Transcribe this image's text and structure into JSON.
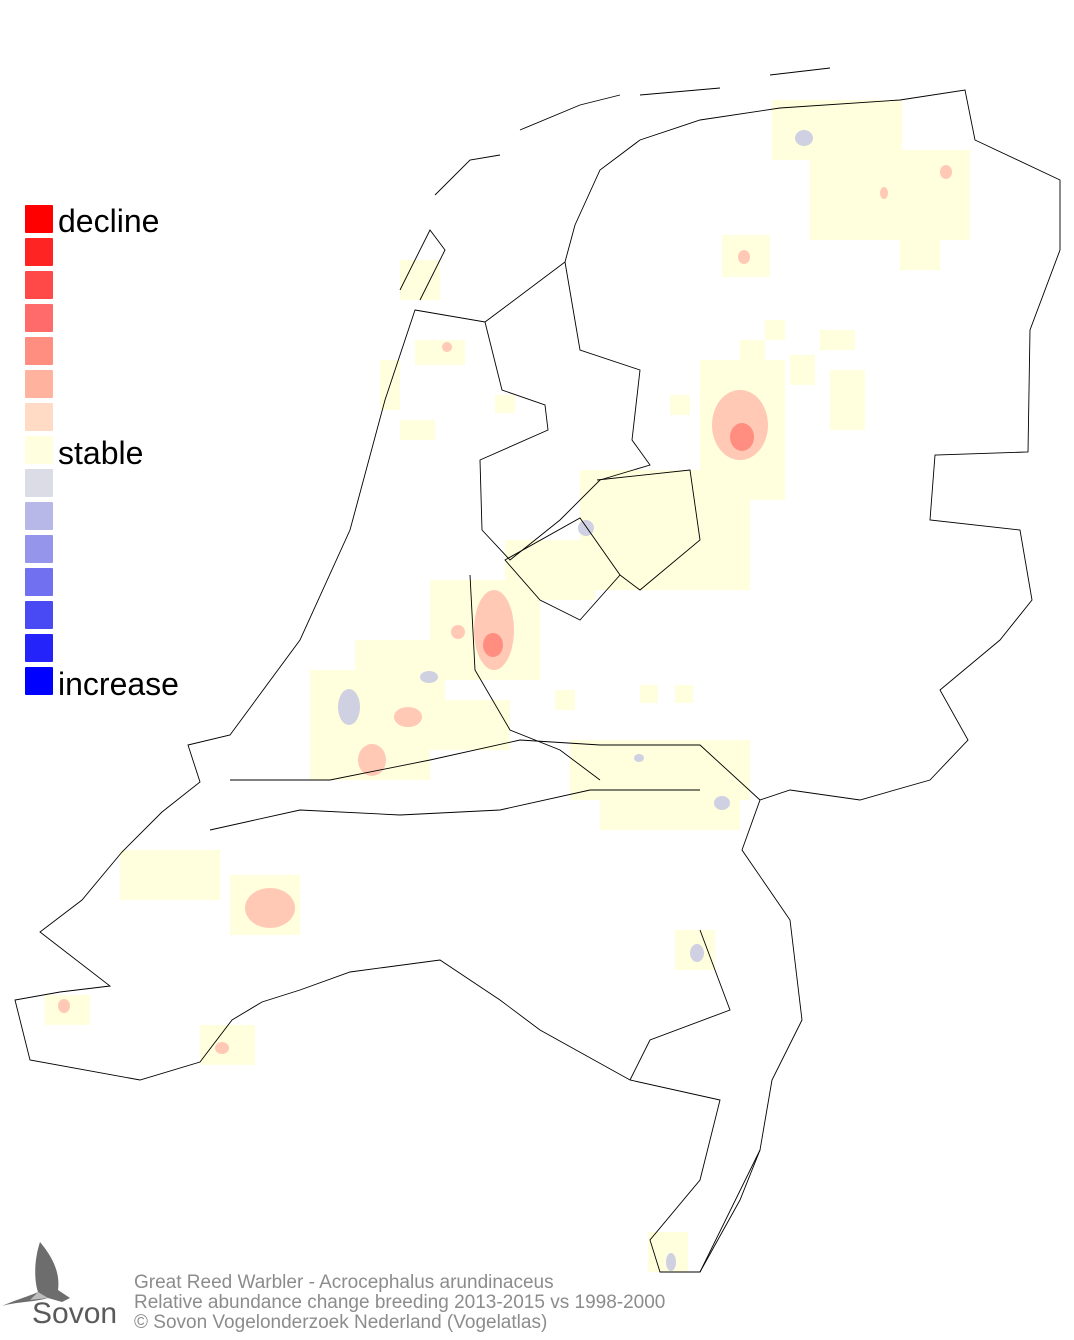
{
  "legend": {
    "label_top": "decline",
    "label_mid": "stable",
    "label_bottom": "increase",
    "colors": [
      "#ff0000",
      "#ff2424",
      "#ff4848",
      "#ff6a6a",
      "#ff8d80",
      "#ffb39f",
      "#ffdac4",
      "#ffffe0",
      "#dcdce6",
      "#b8b8e8",
      "#9595ec",
      "#7070f0",
      "#4a4af5",
      "#2424fa",
      "#0000ff"
    ]
  },
  "map": {
    "region": "Netherlands",
    "colors": {
      "stable": "#ffffdd",
      "decline": "#ff8d80",
      "strong_decline": "#ff6a6a",
      "increase": "#cfd0e2"
    }
  },
  "caption": {
    "line1": "Great Reed Warbler - Acrocephalus arundinaceus",
    "line2": "Relative abundance change breeding 2013-2015 vs 1998-2000",
    "line3": "© Sovon Vogelonderzoek Nederland (Vogelatlas)"
  },
  "logo": {
    "text": "Sovon"
  }
}
